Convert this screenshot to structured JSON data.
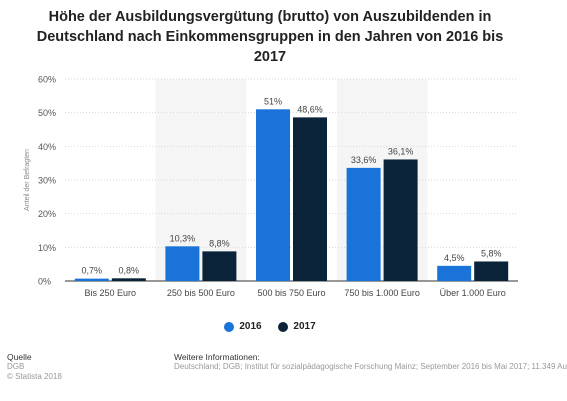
{
  "chart_data": {
    "type": "bar",
    "title": "Höhe der Ausbildungsvergütung (brutto) von Auszubildenden in Deutschland nach Einkommensgruppen in den Jahren von 2016 bis 2017",
    "categories": [
      "Bis 250 Euro",
      "250 bis 500 Euro",
      "500 bis 750 Euro",
      "750 bis 1.000 Euro",
      "Über 1.000 Euro"
    ],
    "series": [
      {
        "name": "2016",
        "color": "#1a73d9",
        "values": [
          0.7,
          10.3,
          51,
          33.6,
          4.5
        ],
        "labels": [
          "0,7%",
          "10,3%",
          "51%",
          "33,6%",
          "4,5%"
        ]
      },
      {
        "name": "2017",
        "color": "#0b2338",
        "values": [
          0.8,
          8.8,
          48.6,
          36.1,
          5.8
        ],
        "labels": [
          "0,8%",
          "8,8%",
          "48,6%",
          "36,1%",
          "5,8%"
        ]
      }
    ],
    "ylabel": "Anteil der Befragten",
    "ylim": [
      0,
      60
    ],
    "yticks": [
      "0%",
      "10%",
      "20%",
      "30%",
      "40%",
      "50%",
      "60%"
    ],
    "legend": "bottom-center",
    "grid": true
  },
  "footer": {
    "source_heading": "Quelle",
    "source_lines": [
      "DGB",
      "© Statista 2018"
    ],
    "info_heading": "Weitere Informationen:",
    "info_text": "Deutschland; DGB; Institut für sozialpädagogische Forschung Mainz; September 2016 bis Mai 2017; 11.349 Au"
  }
}
